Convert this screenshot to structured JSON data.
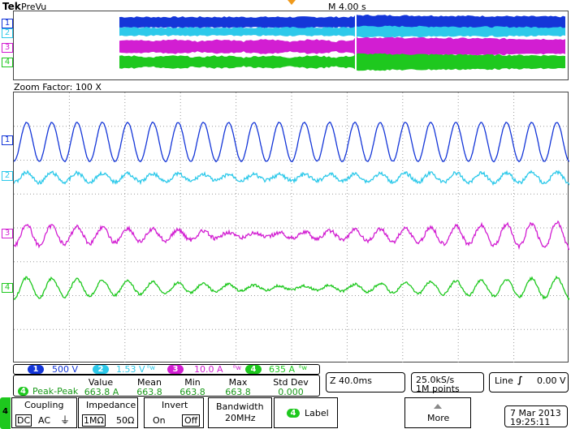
{
  "header": {
    "brand": "Tek",
    "mode": "PreVu",
    "timebase": "M 4.00 s"
  },
  "zoom": {
    "label": "Zoom Factor: 100 X"
  },
  "channels": [
    {
      "num": "1",
      "color": "#1436d8",
      "scale": "500 V"
    },
    {
      "num": "2",
      "color": "#2dc9ea",
      "scale": "1.53 V"
    },
    {
      "num": "3",
      "color": "#d21ed2",
      "scale": "10.0 A"
    },
    {
      "num": "4",
      "color": "#1ec81e",
      "scale": "635 A"
    }
  ],
  "measure": {
    "channel": "4",
    "name": "Peak-Peak",
    "headers": [
      "Value",
      "Mean",
      "Min",
      "Max",
      "Std Dev"
    ],
    "values": [
      "663.8 A",
      "663.8",
      "663.8",
      "663.8",
      "0.000"
    ]
  },
  "zoom_time": "Z 40.0ms",
  "sample": {
    "rate": "25.0kS/s",
    "points": "1M points"
  },
  "trigger": {
    "label": "Line",
    "level": "0.00 V"
  },
  "menu": {
    "channel": "4",
    "coupling": {
      "title": "Coupling",
      "options": [
        "DC",
        "AC",
        "⏚"
      ],
      "selected": "DC"
    },
    "impedance": {
      "title": "Impedance",
      "options": [
        "1MΩ",
        "50Ω"
      ],
      "selected": "1MΩ"
    },
    "invert": {
      "title": "Invert",
      "options": [
        "On",
        "Off"
      ],
      "selected": "Off"
    },
    "bandwidth": {
      "title": "Bandwidth",
      "value": "20MHz"
    },
    "label_button": "Label",
    "more_button": "More"
  },
  "datetime": {
    "date": "7 Mar 2013",
    "time": "19:25:11"
  }
}
